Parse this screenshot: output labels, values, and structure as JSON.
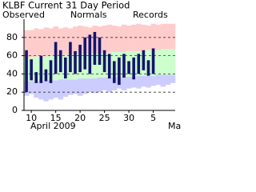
{
  "chart_data": {
    "type": "bar",
    "title": "KLBF Current 31 Day Period",
    "categories": [
      null,
      "10",
      null,
      null,
      null,
      null,
      "15",
      null,
      null,
      null,
      null,
      "20",
      null,
      null,
      null,
      null,
      "25",
      null,
      null,
      null,
      null,
      "30",
      null,
      null,
      null,
      null,
      "5",
      null,
      null,
      null,
      null
    ],
    "xlabel_left": "April 2009",
    "xlabel_right": "Ma",
    "series": [
      {
        "name": "Observed",
        "color": "#14146e",
        "text_color": "#0000cc",
        "low": [
          20,
          33,
          30,
          30,
          32,
          30,
          40,
          42,
          35,
          42,
          40,
          42,
          45,
          40,
          50,
          50,
          42,
          35,
          30,
          28,
          36,
          40,
          34,
          40,
          44,
          38,
          40,
          null,
          null,
          null,
          null
        ],
        "high": [
          66,
          56,
          42,
          60,
          45,
          55,
          75,
          66,
          58,
          75,
          65,
          72,
          80,
          83,
          86,
          80,
          66,
          62,
          54,
          58,
          62,
          54,
          58,
          62,
          66,
          55,
          68,
          null,
          null,
          null,
          null
        ]
      },
      {
        "name": "Normals",
        "color": "#ccffcc",
        "text_color": "#009900",
        "low": [
          32,
          32,
          32,
          33,
          33,
          33,
          33,
          34,
          34,
          34,
          34,
          35,
          35,
          35,
          35,
          36,
          36,
          36,
          36,
          37,
          37,
          37,
          37,
          38,
          38,
          38,
          38,
          39,
          39,
          39,
          39
        ],
        "high": [
          58,
          58,
          59,
          59,
          59,
          60,
          60,
          60,
          61,
          61,
          61,
          62,
          62,
          62,
          63,
          63,
          63,
          63,
          64,
          64,
          64,
          65,
          65,
          65,
          65,
          66,
          66,
          66,
          67,
          67,
          67
        ]
      },
      {
        "name": "Records",
        "color": "#ffcccc",
        "low_color": "#ccccff",
        "text_color": "#cc88cc",
        "low": [
          16,
          18,
          14,
          12,
          10,
          12,
          14,
          12,
          15,
          17,
          18,
          16,
          18,
          20,
          19,
          20,
          22,
          20,
          22,
          24,
          22,
          24,
          25,
          24,
          26,
          25,
          27,
          28,
          26,
          28,
          30
        ],
        "high": [
          88,
          88,
          90,
          89,
          91,
          90,
          92,
          90,
          91,
          90,
          92,
          93,
          92,
          91,
          93,
          92,
          93,
          94,
          93,
          92,
          94,
          93,
          94,
          95,
          94,
          93,
          95,
          94,
          95,
          95,
          95
        ]
      }
    ],
    "ylim": [
      0,
      100
    ],
    "yticks": [
      0,
      20,
      40,
      60,
      80
    ],
    "grid": true
  }
}
